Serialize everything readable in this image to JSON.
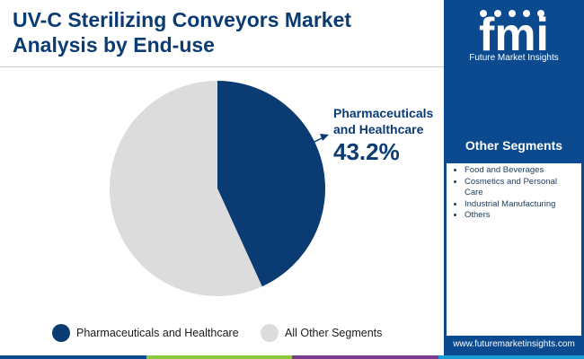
{
  "title": {
    "line1": "UV-C Sterilizing Conveyors Market",
    "line2": "Analysis by End-use"
  },
  "logo": {
    "text": "fmi",
    "caption": "Future Market Insights"
  },
  "callout": {
    "label": "Pharmaceuticals and Healthcare",
    "value": "43.2%"
  },
  "sidebar": {
    "header": "Other Segments",
    "items": [
      "Food and Beverages",
      "Cosmetics and Personal Care",
      "Industrial Manufacturing",
      "Others"
    ],
    "url": "www.futuremarketinsights.com"
  },
  "legend": [
    {
      "label": "Pharmaceuticals and Healthcare",
      "color": "#0b3b73"
    },
    {
      "label": "All Other Segments",
      "color": "#dcdcdc"
    }
  ],
  "colors": {
    "primary": "#0b3b73",
    "sidebar": "#0b4a8e",
    "other": "#dcdcdc",
    "bar_colors": [
      "#0b4a8e",
      "#8dc63f",
      "#7a3b8f",
      "#1a9ad6"
    ]
  },
  "chart_data": {
    "type": "pie",
    "title": "UV-C Sterilizing Conveyors Market Analysis by End-use",
    "slices": [
      {
        "label": "Pharmaceuticals and Healthcare",
        "value": 43.2,
        "color": "#0b3b73"
      },
      {
        "label": "All Other Segments",
        "value": 56.8,
        "color": "#dcdcdc"
      }
    ],
    "start_angle_deg": 0,
    "direction": "clockwise",
    "legend_position": "bottom"
  }
}
